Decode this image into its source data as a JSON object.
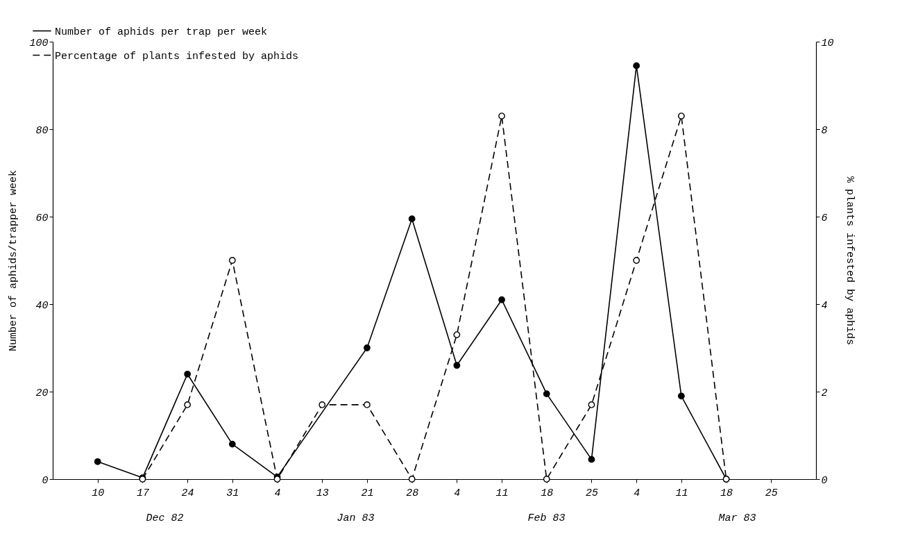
{
  "chart_data": {
    "type": "line",
    "ylabel": "Number of aphids/trapper week",
    "y2label": "% plants infested by aphids",
    "categories": [
      "10",
      "17",
      "24",
      "31",
      "4",
      "13",
      "21",
      "28",
      "4",
      "11",
      "18",
      "25",
      "4",
      "11",
      "18",
      "25"
    ],
    "series": [
      {
        "name": "Number of aphids per trap per week",
        "color": "#000000",
        "line_style": "solid",
        "values": [
          4,
          0.3,
          24,
          8,
          0.5,
          null,
          30,
          59.5,
          26,
          41,
          19.5,
          4.5,
          94.5,
          19,
          0,
          null
        ]
      },
      {
        "name": "Percentage of plants infested by aphids",
        "color": "#000000",
        "line_style": "dashed",
        "axis": "y2",
        "values": [
          null,
          0,
          1.7,
          5.0,
          0,
          1.7,
          1.7,
          0,
          3.3,
          8.3,
          0,
          1.7,
          5.0,
          8.3,
          0,
          null
        ]
      }
    ],
    "ylim": [
      0,
      100
    ],
    "yticks": [
      0,
      20,
      40,
      60,
      80,
      100
    ],
    "y2lim": [
      0,
      10
    ],
    "y2ticks": [
      0,
      2,
      4,
      6,
      8,
      10
    ],
    "annotations": [
      "Dec 82",
      "Jan 83",
      "Feb 83",
      "Mar 83"
    ],
    "marker": "circle",
    "grid": false,
    "legend": "top left"
  }
}
